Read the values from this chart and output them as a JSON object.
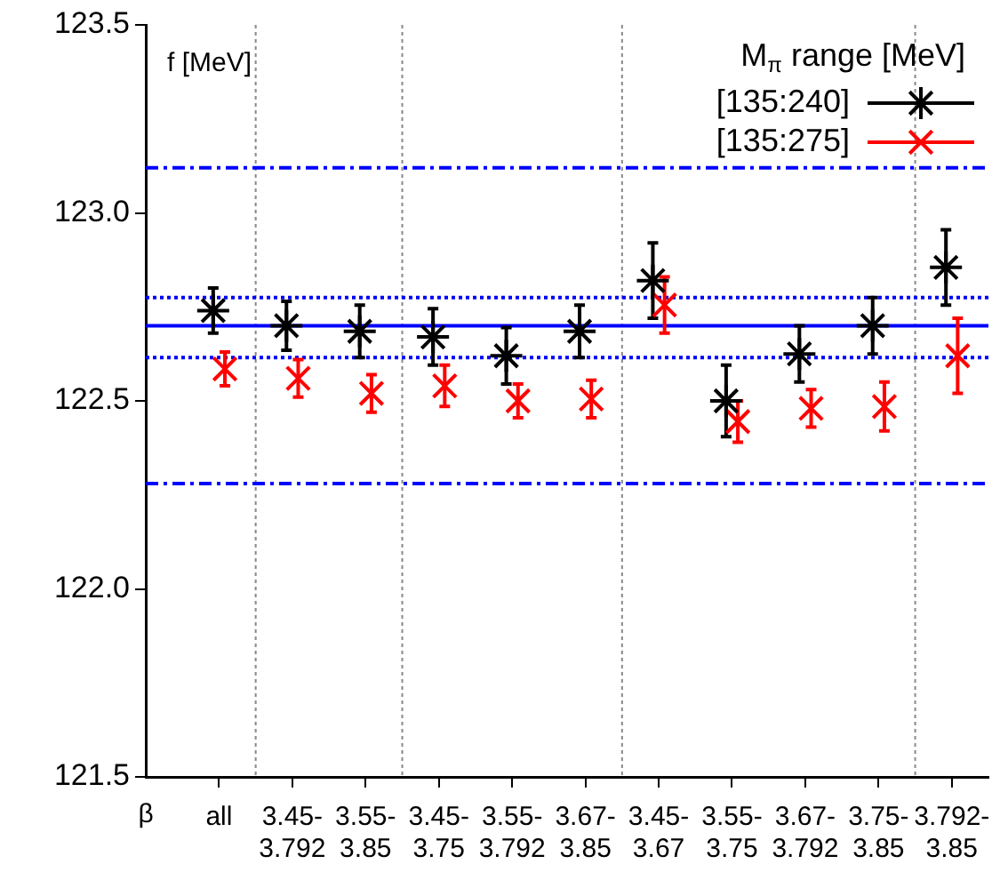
{
  "chart_data": {
    "type": "scatter",
    "annotations": [
      "f [MeV]"
    ],
    "legend_title": "M$_{π}$ range [MeV]",
    "legend": "top right",
    "grid": false,
    "xlabel": "β",
    "categories": [
      "all",
      "3.45-\n3.792",
      "3.55-\n3.85",
      "3.45-\n3.75",
      "3.55-\n3.792",
      "3.67-\n3.85",
      "3.45-\n3.67",
      "3.55-\n3.75",
      "3.67-\n3.792",
      "3.75-\n3.85",
      "3.792-\n3.85"
    ],
    "ylim": [
      121.5,
      123.5
    ],
    "yticks": [
      {
        "value": 121.5,
        "label": "121.5"
      },
      {
        "value": 122,
        "label": "122.0"
      },
      {
        "value": 122.5,
        "label": "122.5"
      },
      {
        "value": 123,
        "label": "123.0"
      },
      {
        "value": 123.5,
        "label": "123.5"
      }
    ],
    "series": [
      {
        "name": "[135:240]",
        "color": "#000000",
        "values": [
          122.74,
          122.7,
          122.685,
          122.67,
          122.62,
          122.685,
          122.82,
          122.5,
          122.625,
          122.7,
          122.855
        ],
        "errors": [
          0.06,
          0.065,
          0.07,
          0.075,
          0.075,
          0.07,
          0.1,
          0.095,
          0.075,
          0.075,
          0.1
        ]
      },
      {
        "name": "[135:275]",
        "color": "#ff0000",
        "marker": "cross",
        "values": [
          122.585,
          122.56,
          122.52,
          122.54,
          122.5,
          122.505,
          122.755,
          122.445,
          122.48,
          122.485,
          122.62
        ],
        "errors": [
          0.045,
          0.05,
          0.05,
          0.055,
          0.045,
          0.05,
          0.075,
          0.055,
          0.05,
          0.065,
          0.1
        ]
      }
    ],
    "ref_lines": [
      {
        "axis": "y",
        "value": 122.7,
        "color": "#0000ff",
        "line_style": "solid"
      },
      {
        "axis": "y",
        "value": 122.775,
        "color": "#0000ff",
        "line_style": "dotted"
      },
      {
        "axis": "y",
        "value": 122.615,
        "color": "#0000ff",
        "line_style": "dotted"
      },
      {
        "axis": "y",
        "value": 123.12,
        "color": "#0000ff",
        "line_style": "dashed"
      },
      {
        "axis": "y",
        "value": 122.28,
        "color": "#0000ff",
        "line_style": "dashed"
      }
    ]
  }
}
